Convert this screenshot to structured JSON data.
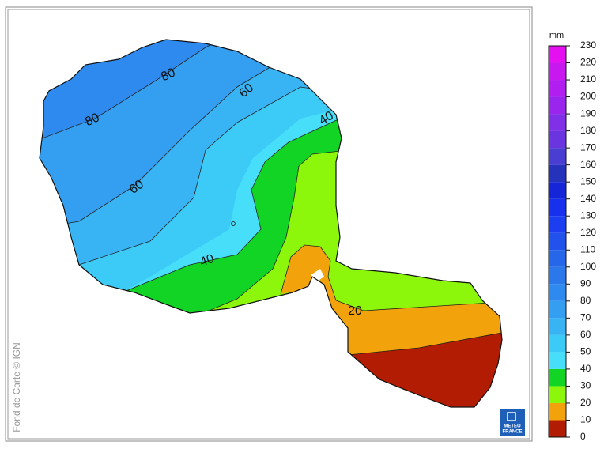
{
  "map": {
    "credit": "Fond de Carte © IGN",
    "logo": [
      "METEO",
      "FRANCE"
    ],
    "contour_labels": [
      80,
      80,
      60,
      60,
      40,
      40,
      20
    ]
  },
  "colorbar": {
    "unit": "mm",
    "ticks": [
      0,
      10,
      20,
      30,
      40,
      50,
      60,
      70,
      80,
      90,
      100,
      110,
      120,
      130,
      140,
      150,
      160,
      170,
      180,
      190,
      200,
      210,
      220,
      230
    ],
    "colors": [
      "#b21c02",
      "#f2a20a",
      "#8cf70a",
      "#12d424",
      "#46def8",
      "#3ccaf6",
      "#38b4f4",
      "#349ef0",
      "#2e8aee",
      "#2a78ea",
      "#2666e8",
      "#2252ec",
      "#1c3ef0",
      "#1630ee",
      "#1426d8",
      "#2432bc",
      "#4a3ed2",
      "#6a34de",
      "#8030e6",
      "#9a26ee",
      "#b01ef0",
      "#c818f0",
      "#e410f0"
    ]
  }
}
